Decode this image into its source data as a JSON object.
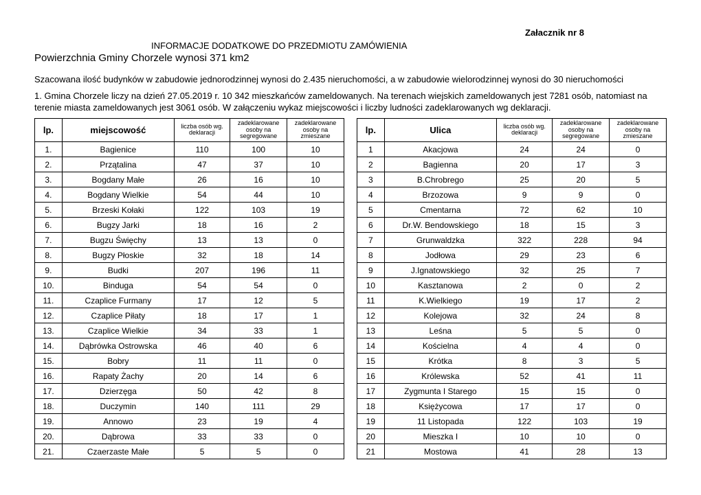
{
  "header": {
    "attachment": "Załacznik nr 8",
    "title": "INFORMACJE DODATKOWE DO PRZEDMIOTU ZAMÓWIENIA",
    "subtitle": "Powierzchnia Gminy Chorzele wynosi 371 km2",
    "para1": "Szacowana ilość budynków w zabudowie jednorodzinnej wynosi do 2.435 nieruchomości, a w zabudowie wielorodzinnej wynosi do 30 nieruchomości",
    "para2": "1. Gmina Chorzele liczy na dzień 27.05.2019 r. 10 342 mieszkańców zameldowanych. Na terenach wiejskich zameldowanych jest 7281 osób, natomiast na terenie miasta zameldowanych jest 3061 osób. W załączeniu wykaz miejscowości i liczby ludności zadeklarowanych wg deklaracji."
  },
  "columns": {
    "lp": "lp.",
    "miejscowosc": "miejscowość",
    "ulica": "Ulica",
    "sub1": "liczba osób wg. deklaracji",
    "sub2": "zadeklarowane osoby na segregowane",
    "sub3": "zadeklarowane osoby na zmieszane"
  },
  "table1": {
    "rows": [
      {
        "lp": "1.",
        "name": "Bagienice",
        "a": "110",
        "b": "100",
        "c": "10"
      },
      {
        "lp": "2.",
        "name": "Przątalina",
        "a": "47",
        "b": "37",
        "c": "10"
      },
      {
        "lp": "3.",
        "name": "Bogdany Małe",
        "a": "26",
        "b": "16",
        "c": "10"
      },
      {
        "lp": "4.",
        "name": "Bogdany Wielkie",
        "a": "54",
        "b": "44",
        "c": "10"
      },
      {
        "lp": "5.",
        "name": "Brzeski Kołaki",
        "a": "122",
        "b": "103",
        "c": "19"
      },
      {
        "lp": "6.",
        "name": "Bugzy Jarki",
        "a": "18",
        "b": "16",
        "c": "2"
      },
      {
        "lp": "7.",
        "name": "Bugzu Święchy",
        "a": "13",
        "b": "13",
        "c": "0"
      },
      {
        "lp": "8.",
        "name": "Bugzy Płoskie",
        "a": "32",
        "b": "18",
        "c": "14"
      },
      {
        "lp": "9.",
        "name": "Budki",
        "a": "207",
        "b": "196",
        "c": "11"
      },
      {
        "lp": "10.",
        "name": "Binduga",
        "a": "54",
        "b": "54",
        "c": "0"
      },
      {
        "lp": "11.",
        "name": "Czaplice Furmany",
        "a": "17",
        "b": "12",
        "c": "5"
      },
      {
        "lp": "12.",
        "name": "Czaplice Piłaty",
        "a": "18",
        "b": "17",
        "c": "1"
      },
      {
        "lp": "13.",
        "name": "Czaplice Wielkie",
        "a": "34",
        "b": "33",
        "c": "1"
      },
      {
        "lp": "14.",
        "name": "Dąbrówka Ostrowska",
        "a": "46",
        "b": "40",
        "c": "6"
      },
      {
        "lp": "15.",
        "name": "Bobry",
        "a": "11",
        "b": "11",
        "c": "0"
      },
      {
        "lp": "16.",
        "name": "Rapaty Żachy",
        "a": "20",
        "b": "14",
        "c": "6"
      },
      {
        "lp": "17.",
        "name": "Dzierzęga",
        "a": "50",
        "b": "42",
        "c": "8"
      },
      {
        "lp": "18.",
        "name": "Duczymin",
        "a": "140",
        "b": "111",
        "c": "29"
      },
      {
        "lp": "19.",
        "name": "Annowo",
        "a": "23",
        "b": "19",
        "c": "4"
      },
      {
        "lp": "20.",
        "name": "Dąbrowa",
        "a": "33",
        "b": "33",
        "c": "0"
      },
      {
        "lp": "21.",
        "name": "Czaerzaste Małe",
        "a": "5",
        "b": "5",
        "c": "0"
      }
    ]
  },
  "table2": {
    "rows": [
      {
        "lp": "1",
        "name": "Akacjowa",
        "a": "24",
        "b": "24",
        "c": "0"
      },
      {
        "lp": "2",
        "name": "Bagienna",
        "a": "20",
        "b": "17",
        "c": "3"
      },
      {
        "lp": "3",
        "name": "B.Chrobrego",
        "a": "25",
        "b": "20",
        "c": "5"
      },
      {
        "lp": "4",
        "name": "Brzozowa",
        "a": "9",
        "b": "9",
        "c": "0"
      },
      {
        "lp": "5",
        "name": "Cmentarna",
        "a": "72",
        "b": "62",
        "c": "10"
      },
      {
        "lp": "6",
        "name": "Dr.W. Bendowskiego",
        "a": "18",
        "b": "15",
        "c": "3"
      },
      {
        "lp": "7",
        "name": "Grunwaldzka",
        "a": "322",
        "b": "228",
        "c": "94"
      },
      {
        "lp": "8",
        "name": "Jodłowa",
        "a": "29",
        "b": "23",
        "c": "6"
      },
      {
        "lp": "9",
        "name": "J.Ignatowskiego",
        "a": "32",
        "b": "25",
        "c": "7"
      },
      {
        "lp": "10",
        "name": "Kasztanowa",
        "a": "2",
        "b": "0",
        "c": "2"
      },
      {
        "lp": "11",
        "name": "K.Wielkiego",
        "a": "19",
        "b": "17",
        "c": "2"
      },
      {
        "lp": "12",
        "name": "Kolejowa",
        "a": "32",
        "b": "24",
        "c": "8"
      },
      {
        "lp": "13",
        "name": "Leśna",
        "a": "5",
        "b": "5",
        "c": "0"
      },
      {
        "lp": "14",
        "name": "Kościelna",
        "a": "4",
        "b": "4",
        "c": "0"
      },
      {
        "lp": "15",
        "name": "Krótka",
        "a": "8",
        "b": "3",
        "c": "5"
      },
      {
        "lp": "16",
        "name": "Królewska",
        "a": "52",
        "b": "41",
        "c": "11"
      },
      {
        "lp": "17",
        "name": "Zygmunta I Starego",
        "a": "15",
        "b": "15",
        "c": "0"
      },
      {
        "lp": "18",
        "name": "Księżycowa",
        "a": "17",
        "b": "17",
        "c": "0"
      },
      {
        "lp": "19",
        "name": "11 Listopada",
        "a": "122",
        "b": "103",
        "c": "19"
      },
      {
        "lp": "20",
        "name": "Mieszka I",
        "a": "10",
        "b": "10",
        "c": "0"
      },
      {
        "lp": "21",
        "name": "Mostowa",
        "a": "41",
        "b": "28",
        "c": "13"
      }
    ]
  }
}
